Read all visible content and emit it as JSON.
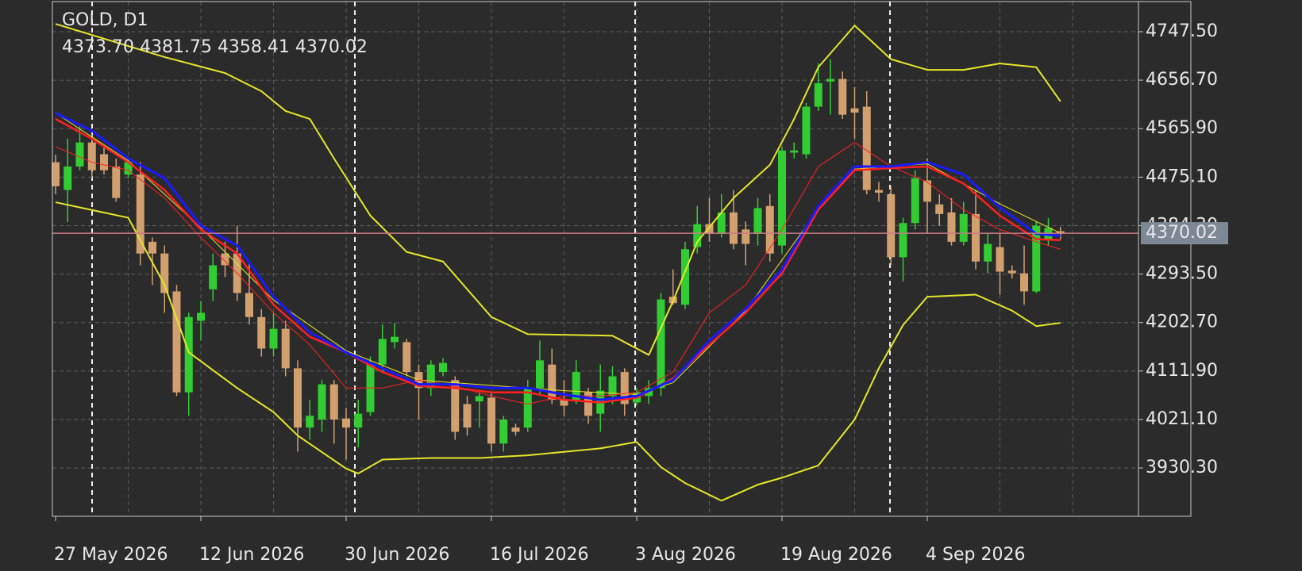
{
  "chart_data": {
    "type": "candlestick",
    "title": "GOLD, D1",
    "subtitle": "4373.70 4381.75 4358.41 4370.02",
    "categories": [
      "27 May 2026",
      null,
      null,
      null,
      null,
      null,
      null,
      null,
      null,
      null,
      null,
      null,
      "12 Jun 2026",
      null,
      null,
      null,
      null,
      null,
      null,
      null,
      null,
      null,
      null,
      null,
      "30 Jun 2026",
      null,
      null,
      null,
      null,
      null,
      null,
      null,
      null,
      null,
      null,
      null,
      "16 Jul 2026",
      null,
      null,
      null,
      null,
      null,
      null,
      null,
      null,
      null,
      null,
      null,
      "3 Aug 2026",
      null,
      null,
      null,
      null,
      null,
      null,
      null,
      null,
      null,
      null,
      null,
      "19 Aug 2026",
      null,
      null,
      null,
      null,
      null,
      null,
      null,
      null,
      null,
      null,
      null,
      "4 Sep 2026",
      null,
      null,
      null,
      null,
      null,
      null,
      null,
      null,
      null,
      null,
      null
    ],
    "open": [
      4503,
      4451,
      4495,
      4540,
      4518,
      4495,
      4480,
      4480,
      4354,
      4332,
      4261,
      4072,
      4206,
      4265,
      4332,
      4332,
      4258,
      4213,
      4154,
      4191,
      4117,
      4006,
      4021,
      4087,
      4023,
      4006,
      4035,
      4124,
      4166,
      4166,
      4110,
      4080,
      4110,
      4095,
      4050,
      4055,
      4062,
      3976,
      4006,
      4006,
      4080,
      4124,
      4058,
      4058,
      4072,
      4032,
      4065,
      4110,
      4053,
      4065,
      4080,
      4251,
      4236,
      4344,
      4387,
      4369,
      4409,
      4377,
      4369,
      4421,
      4347,
      4521,
      4518,
      4607,
      4654,
      4659,
      4604,
      4607,
      4451,
      4443,
      4325,
      4389,
      4469,
      4424,
      4409,
      4354,
      4406,
      4317,
      4344,
      4300,
      4295,
      4261,
      4359,
      4373.7
    ],
    "high": [
      4517,
      4547,
      4570,
      4555,
      4532,
      4510,
      4510,
      4503,
      4362,
      4347,
      4273,
      4221,
      4243,
      4332,
      4354,
      4384,
      4317,
      4228,
      4221,
      4206,
      4132,
      4058,
      4095,
      4095,
      4043,
      4058,
      4139,
      4199,
      4202,
      4172,
      4124,
      4132,
      4136,
      4102,
      4065,
      4072,
      4072,
      4028,
      4013,
      4095,
      4169,
      4154,
      4095,
      4132,
      4080,
      4124,
      4121,
      4117,
      4080,
      4095,
      4258,
      4302,
      4354,
      4421,
      4436,
      4443,
      4451,
      4392,
      4436,
      4443,
      4532,
      4540,
      4614,
      4688,
      4696,
      4673,
      4644,
      4636,
      4466,
      4458,
      4399,
      4488,
      4510,
      4443,
      4436,
      4429,
      4451,
      4369,
      4369,
      4310,
      4347,
      4392,
      4399,
      4381.75
    ],
    "low": [
      4443,
      4391,
      4488,
      4473,
      4480,
      4429,
      4473,
      4310,
      4273,
      4221,
      4065,
      4028,
      4169,
      4243,
      4288,
      4243,
      4199,
      4139,
      4139,
      4102,
      3961,
      3983,
      3998,
      3976,
      3946,
      3969,
      4028,
      4110,
      4154,
      4102,
      4021,
      4065,
      4102,
      3983,
      3991,
      4006,
      3961,
      3961,
      3991,
      3998,
      4065,
      4050,
      4028,
      4050,
      4013,
      3998,
      4050,
      4028,
      4047,
      4050,
      4065,
      4236,
      4228,
      4332,
      4354,
      4362,
      4340,
      4310,
      4347,
      4317,
      4332,
      4510,
      4510,
      4599,
      4592,
      4584,
      4547,
      4443,
      4429,
      4310,
      4280,
      4377,
      4369,
      4384,
      4347,
      4347,
      4302,
      4295,
      4255,
      4285,
      4236,
      4258,
      4347,
      4358.41
    ],
    "close": [
      4458,
      4495,
      4540,
      4488,
      4488,
      4436,
      4503,
      4332,
      4332,
      4258,
      4072,
      4213,
      4221,
      4310,
      4310,
      4258,
      4213,
      4154,
      4191,
      4117,
      4006,
      4028,
      4087,
      4021,
      4006,
      4032,
      4124,
      4172,
      4176,
      4110,
      4080,
      4124,
      4127,
      3998,
      4006,
      4065,
      3976,
      4021,
      3998,
      4080,
      4132,
      4058,
      4047,
      4110,
      4028,
      4075,
      4102,
      4050,
      4072,
      4080,
      4246,
      4239,
      4340,
      4387,
      4369,
      4409,
      4350,
      4350,
      4417,
      4332,
      4525,
      4525,
      4607,
      4651,
      4659,
      4592,
      4596,
      4451,
      4446,
      4325,
      4389,
      4473,
      4429,
      4406,
      4354,
      4406,
      4317,
      4350,
      4298,
      4295,
      4261,
      4384,
      4380,
      4370.02
    ],
    "up_color": "#32cd32",
    "down_color": "#d2a06e",
    "lines": [
      {
        "color": "#e6e62a",
        "width": 2,
        "x": [
          0,
          9,
          14,
          17,
          19,
          21,
          23,
          26,
          29,
          32,
          36,
          39,
          46,
          49,
          51,
          53,
          56,
          59,
          61,
          63,
          66,
          69,
          72,
          75,
          78,
          81,
          83
        ],
        "values": [
          4762,
          4700,
          4670,
          4636,
          4599,
          4584,
          4510,
          4403,
          4335,
          4317,
          4213,
          4181,
          4178,
          4142,
          4243,
          4354,
          4436,
          4498,
          4584,
          4681,
          4759,
          4696,
          4676,
          4676,
          4688,
          4681,
          4617
        ]
      },
      {
        "color": "#e6e62a",
        "width": 2,
        "x": [
          0,
          6,
          9,
          11,
          15,
          18,
          20,
          24,
          25,
          27,
          31,
          35,
          39,
          45,
          48,
          50,
          52,
          55,
          58,
          60,
          63,
          66,
          68,
          70,
          72,
          76,
          79,
          81,
          83
        ],
        "values": [
          4428,
          4399,
          4273,
          4147,
          4080,
          4035,
          3991,
          3929,
          3920,
          3946,
          3949,
          3949,
          3954,
          3967,
          3979,
          3932,
          3902,
          3869,
          3899,
          3912,
          3935,
          4021,
          4117,
          4198,
          4251,
          4255,
          4225,
          4196,
          4202
        ]
      },
      {
        "color": "#e6e62a",
        "width": 1,
        "x": [
          0,
          6,
          12,
          18,
          24,
          30,
          36,
          42,
          48,
          51,
          57,
          63,
          66,
          72,
          78,
          83
        ],
        "values": [
          4595,
          4506,
          4380,
          4245,
          4150,
          4095,
          4085,
          4075,
          4068,
          4090,
          4225,
          4415,
          4490,
          4500,
          4425,
          4370
        ]
      },
      {
        "color": "#ff2020",
        "width": 1,
        "x": [
          0,
          3,
          6,
          9,
          12,
          15,
          18,
          21,
          24,
          27,
          30,
          33,
          36,
          39,
          42,
          45,
          48,
          51,
          54,
          57,
          60,
          63,
          66,
          69,
          72,
          75,
          78,
          81,
          83
        ],
        "values": [
          4532,
          4503,
          4488,
          4436,
          4362,
          4295,
          4221,
          4161,
          4080,
          4080,
          4095,
          4083,
          4065,
          4050,
          4065,
          4065,
          4072,
          4110,
          4221,
          4273,
          4377,
          4495,
          4540,
          4495,
          4466,
          4414,
          4377,
          4354,
          4340
        ]
      },
      {
        "color": "#ff2020",
        "width": 2.5,
        "x": [
          0,
          3,
          6,
          9,
          12,
          15,
          18,
          21,
          24,
          27,
          30,
          33,
          36,
          39,
          42,
          45,
          48,
          51,
          54,
          57,
          60,
          63,
          66,
          69,
          72,
          75,
          78,
          81,
          83
        ],
        "values": [
          4584,
          4547,
          4503,
          4451,
          4377,
          4332,
          4236,
          4176,
          4147,
          4110,
          4084,
          4080,
          4072,
          4072,
          4058,
          4053,
          4062,
          4098,
          4161,
          4221,
          4295,
          4414,
          4488,
          4492,
          4495,
          4463,
          4403,
          4359,
          4357
        ]
      },
      {
        "color": "#1a1aff",
        "width": 3,
        "x": [
          0,
          3,
          6,
          9,
          12,
          15,
          18,
          21,
          24,
          27,
          30,
          33,
          36,
          39,
          42,
          45,
          48,
          51,
          54,
          57,
          60,
          63,
          66,
          69,
          72,
          75,
          78,
          81,
          83
        ],
        "values": [
          4595,
          4562,
          4510,
          4473,
          4384,
          4347,
          4251,
          4184,
          4147,
          4117,
          4087,
          4087,
          4080,
          4080,
          4068,
          4058,
          4065,
          4095,
          4169,
          4228,
          4302,
          4421,
          4495,
          4495,
          4503,
          4480,
          4418,
          4369,
          4365
        ]
      }
    ],
    "bid": 4370.02,
    "bid_color": "#c97a86",
    "ylim": [
      3839.8,
      4803.9
    ],
    "yticks": [
      {
        "value": 3930.3,
        "label": "3930.30"
      },
      {
        "value": 4021.1,
        "label": "4021.10"
      },
      {
        "value": 4111.9,
        "label": "4111.90"
      },
      {
        "value": 4202.7,
        "label": "4202.70"
      },
      {
        "value": 4293.5,
        "label": "4293.50"
      },
      {
        "value": 4384.3,
        "label": "4384.30"
      },
      {
        "value": 4475.1,
        "label": "4475.10"
      },
      {
        "value": 4565.9,
        "label": "4565.90"
      },
      {
        "value": 4656.7,
        "label": "4656.70"
      },
      {
        "value": 4747.5,
        "label": "4747.50"
      }
    ],
    "grid": true
  }
}
